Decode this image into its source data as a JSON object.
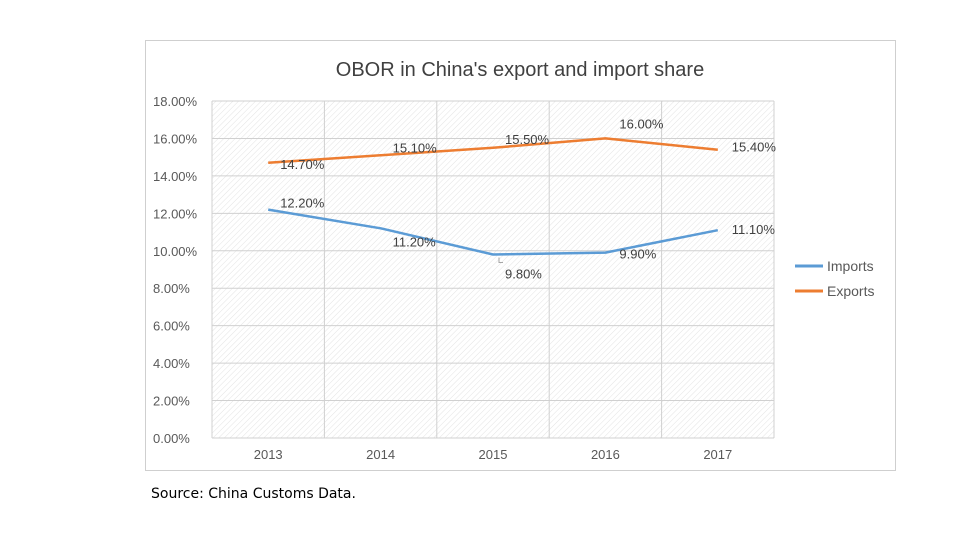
{
  "chart_data": {
    "type": "line",
    "title": "OBOR in China's export and import share",
    "categories": [
      "2013",
      "2014",
      "2015",
      "2016",
      "2017"
    ],
    "series": [
      {
        "name": "Imports",
        "color": "#5b9bd5",
        "values": [
          12.2,
          11.2,
          9.8,
          9.9,
          11.1
        ],
        "labels": [
          "12.20%",
          "11.20%",
          "9.80%",
          "9.90%",
          "11.10%"
        ]
      },
      {
        "name": "Exports",
        "color": "#ed7d31",
        "values": [
          14.7,
          15.1,
          15.5,
          16.0,
          15.4
        ],
        "labels": [
          "14.70%",
          "15.10%",
          "15.50%",
          "16.00%",
          "15.40%"
        ]
      }
    ],
    "ylim": [
      0,
      18
    ],
    "yticks": [
      "0.00%",
      "2.00%",
      "4.00%",
      "6.00%",
      "8.00%",
      "10.00%",
      "12.00%",
      "14.00%",
      "16.00%",
      "18.00%"
    ],
    "grid": true,
    "legend_position": "right"
  },
  "source": "Source: China Customs Data."
}
